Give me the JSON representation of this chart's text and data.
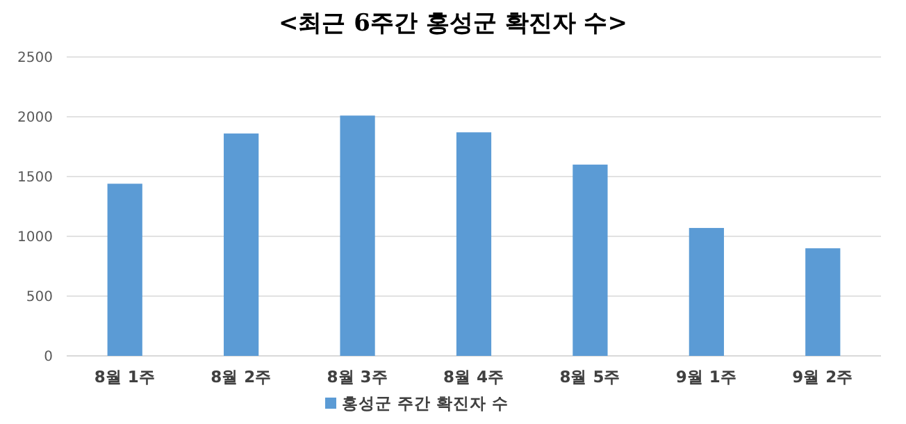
{
  "chart_data": {
    "type": "bar",
    "title": "<최근 6주간 홍성군 확진자 수>",
    "categories": [
      "8월 1주",
      "8월 2주",
      "8월 3주",
      "8월 4주",
      "8월 5주",
      "9월 1주",
      "9월 2주"
    ],
    "series": [
      {
        "name": "홍성군 주간 확진자 수",
        "color": "#5b9bd5",
        "values": [
          1440,
          1860,
          2010,
          1870,
          1600,
          1070,
          900
        ]
      }
    ],
    "ylim": [
      0,
      2500
    ],
    "yticks": [
      0,
      500,
      1000,
      1500,
      2000,
      2500
    ],
    "grid": "y",
    "legend": "bottom"
  }
}
